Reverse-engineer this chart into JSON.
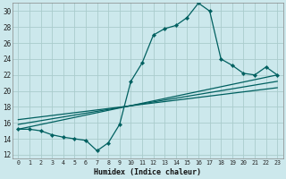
{
  "title": "",
  "xlabel": "Humidex (Indice chaleur)",
  "bg_color": "#cce8ec",
  "grid_color": "#aacccc",
  "line_color": "#006060",
  "xlim": [
    -0.5,
    23.5
  ],
  "ylim": [
    11.5,
    31.0
  ],
  "xticks": [
    0,
    1,
    2,
    3,
    4,
    5,
    6,
    7,
    8,
    9,
    10,
    11,
    12,
    13,
    14,
    15,
    16,
    17,
    18,
    19,
    20,
    21,
    22,
    23
  ],
  "yticks": [
    12,
    14,
    16,
    18,
    20,
    22,
    24,
    26,
    28,
    30
  ],
  "curve_x": [
    0,
    1,
    2,
    3,
    4,
    5,
    6,
    7,
    8,
    9,
    10,
    11,
    12,
    13,
    14,
    15,
    16,
    17,
    18,
    19,
    20,
    21,
    22,
    23
  ],
  "curve_y": [
    15.2,
    15.2,
    15.0,
    14.5,
    14.2,
    14.0,
    13.8,
    12.5,
    13.5,
    15.8,
    21.2,
    23.5,
    27.0,
    27.8,
    28.2,
    29.2,
    31.0,
    30.0,
    24.0,
    23.2,
    22.2,
    22.0,
    23.0,
    22.0
  ],
  "line1_x": [
    0,
    23
  ],
  "line1_y": [
    15.2,
    22.0
  ],
  "line2_x": [
    0,
    23
  ],
  "line2_y": [
    15.8,
    21.2
  ],
  "line3_x": [
    0,
    23
  ],
  "line3_y": [
    16.4,
    20.4
  ]
}
